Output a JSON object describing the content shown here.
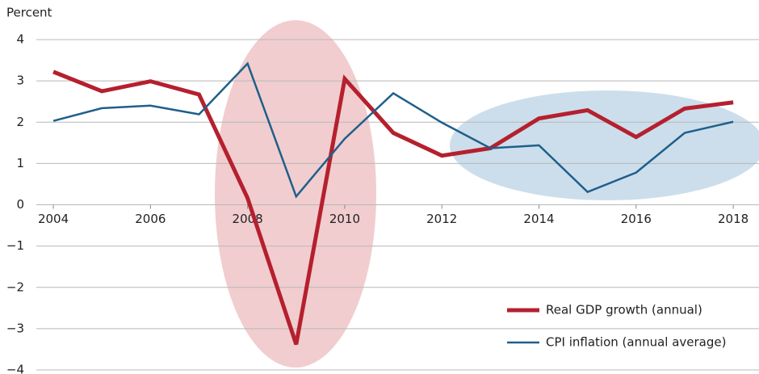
{
  "chart_data": {
    "type": "line",
    "y_axis_label": "Percent",
    "x": [
      2004,
      2005,
      2006,
      2007,
      2008,
      2009,
      2010,
      2011,
      2012,
      2013,
      2014,
      2015,
      2016,
      2017,
      2018
    ],
    "series": [
      {
        "name": "Real GDP growth (annual)",
        "color": "#b5202e",
        "values": [
          3.22,
          2.75,
          2.99,
          2.67,
          0.16,
          -3.38,
          3.05,
          1.74,
          1.19,
          1.37,
          2.09,
          2.29,
          1.64,
          2.33,
          2.48
        ]
      },
      {
        "name": "CPI inflation (annual average)",
        "color": "#1f5f8b",
        "values": [
          2.03,
          2.34,
          2.4,
          2.19,
          3.42,
          0.2,
          1.6,
          2.7,
          1.99,
          1.37,
          1.44,
          0.31,
          0.78,
          1.74,
          2.01
        ]
      }
    ],
    "xlim": [
      2003.65,
      2018.53
    ],
    "xticks": [
      2004,
      2006,
      2008,
      2010,
      2012,
      2014,
      2016,
      2018
    ],
    "ylim": [
      -4,
      4
    ],
    "yticks": [
      {
        "value": -4,
        "label": "−4"
      },
      {
        "value": -3,
        "label": "−3"
      },
      {
        "value": -2,
        "label": "−2"
      },
      {
        "value": -1,
        "label": "−1"
      },
      0,
      1,
      2,
      3,
      4
    ],
    "grid": true,
    "legend": "lower right"
  }
}
